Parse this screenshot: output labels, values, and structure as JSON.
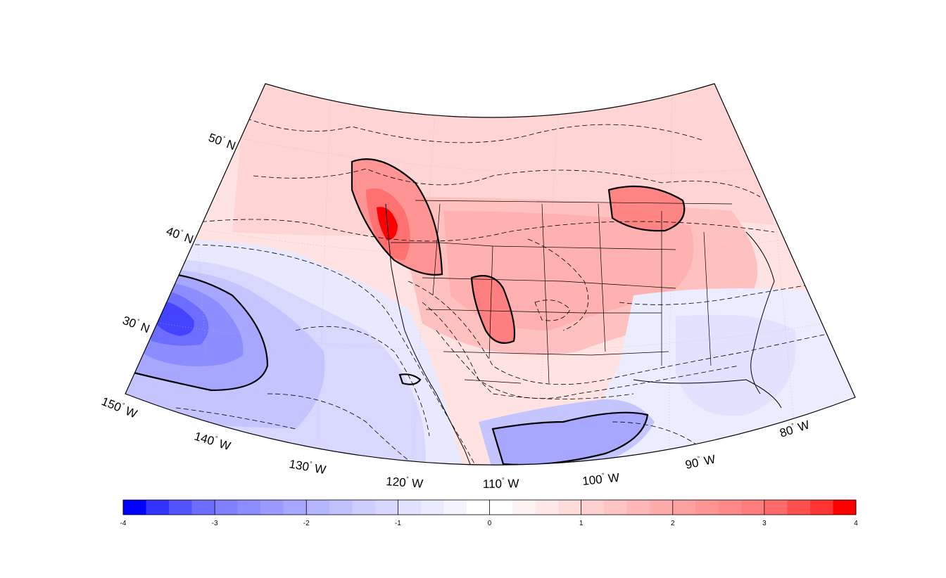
{
  "map": {
    "projection": "lambert-conformal",
    "region": "North America / Eastern Pacific",
    "lat_labels": [
      {
        "value": "50",
        "hemisphere": "N"
      },
      {
        "value": "40",
        "hemisphere": "N"
      },
      {
        "value": "30",
        "hemisphere": "N"
      }
    ],
    "lon_labels": [
      {
        "value": "150",
        "hemisphere": "W"
      },
      {
        "value": "140",
        "hemisphere": "W"
      },
      {
        "value": "130",
        "hemisphere": "W"
      },
      {
        "value": "120",
        "hemisphere": "W"
      },
      {
        "value": "110",
        "hemisphere": "W"
      },
      {
        "value": "100",
        "hemisphere": "W"
      },
      {
        "value": "90",
        "hemisphere": "W"
      },
      {
        "value": "80",
        "hemisphere": "W"
      }
    ],
    "degree_symbol": "°",
    "features": [
      "shaded anomaly field",
      "dashed contours",
      "bold contours at whole units",
      "state boundaries",
      "coastlines"
    ]
  },
  "colorbar": {
    "ticks": [
      "-4",
      "-3",
      "-2",
      "-1",
      "0",
      "1",
      "2",
      "3",
      "4"
    ],
    "min": -4,
    "max": 4,
    "step": 0.25,
    "colors": [
      "#0000ff",
      "#3434ff",
      "#5252ff",
      "#6d6dff",
      "#8080ff",
      "#8d8dff",
      "#9a9aff",
      "#a7a7ff",
      "#b4b4ff",
      "#c1c1ff",
      "#cdcdff",
      "#d8d8ff",
      "#e2e2ff",
      "#ebebff",
      "#f4f4ff",
      "#ffffff",
      "#ffffff",
      "#fff4f4",
      "#ffe8e8",
      "#ffdcdc",
      "#ffd0d0",
      "#ffc4c4",
      "#ffb8b8",
      "#ffacac",
      "#ffa0a0",
      "#ff9494",
      "#ff8888",
      "#ff7c7c",
      "#ff6a6a",
      "#ff5050",
      "#ff3434",
      "#ff0000"
    ]
  }
}
